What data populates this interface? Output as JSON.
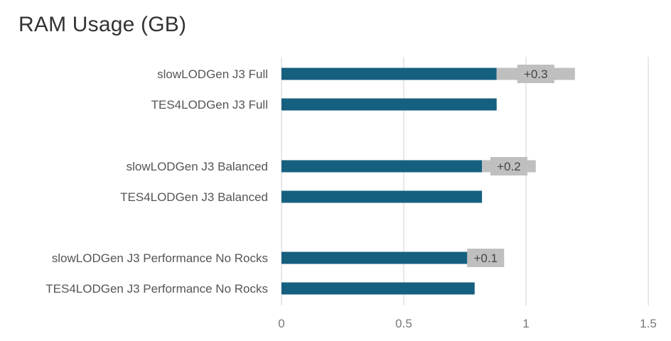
{
  "chart_data": {
    "type": "bar",
    "orientation": "horizontal",
    "stacked": true,
    "title": "RAM Usage (GB)",
    "xlabel": "",
    "ylabel": "",
    "xlim": [
      0,
      1.5
    ],
    "xticks": [
      "0",
      "0.5",
      "1",
      "1.5"
    ],
    "grid": true,
    "categories": [
      "slowLODGen J3 Full",
      "TES4LODGen J3 Full",
      "slowLODGen J3 Balanced",
      "TES4LODGen J3 Balanced",
      "slowLODGen J3 Performance No Rocks",
      "TES4LODGen J3 Performance No Rocks"
    ],
    "series": [
      {
        "values": [
          0.88,
          0.88,
          0.82,
          0.82,
          0.76,
          0.79
        ]
      },
      {
        "values": [
          0.32,
          0,
          0.22,
          0,
          0.15,
          0
        ]
      }
    ],
    "data_labels": [
      "+0.3",
      "",
      "+0.2",
      "",
      "+0.1",
      ""
    ]
  },
  "colors": {
    "base": "#16607f",
    "delta": "#bfbfbf",
    "grid": "#d9d9d9"
  }
}
